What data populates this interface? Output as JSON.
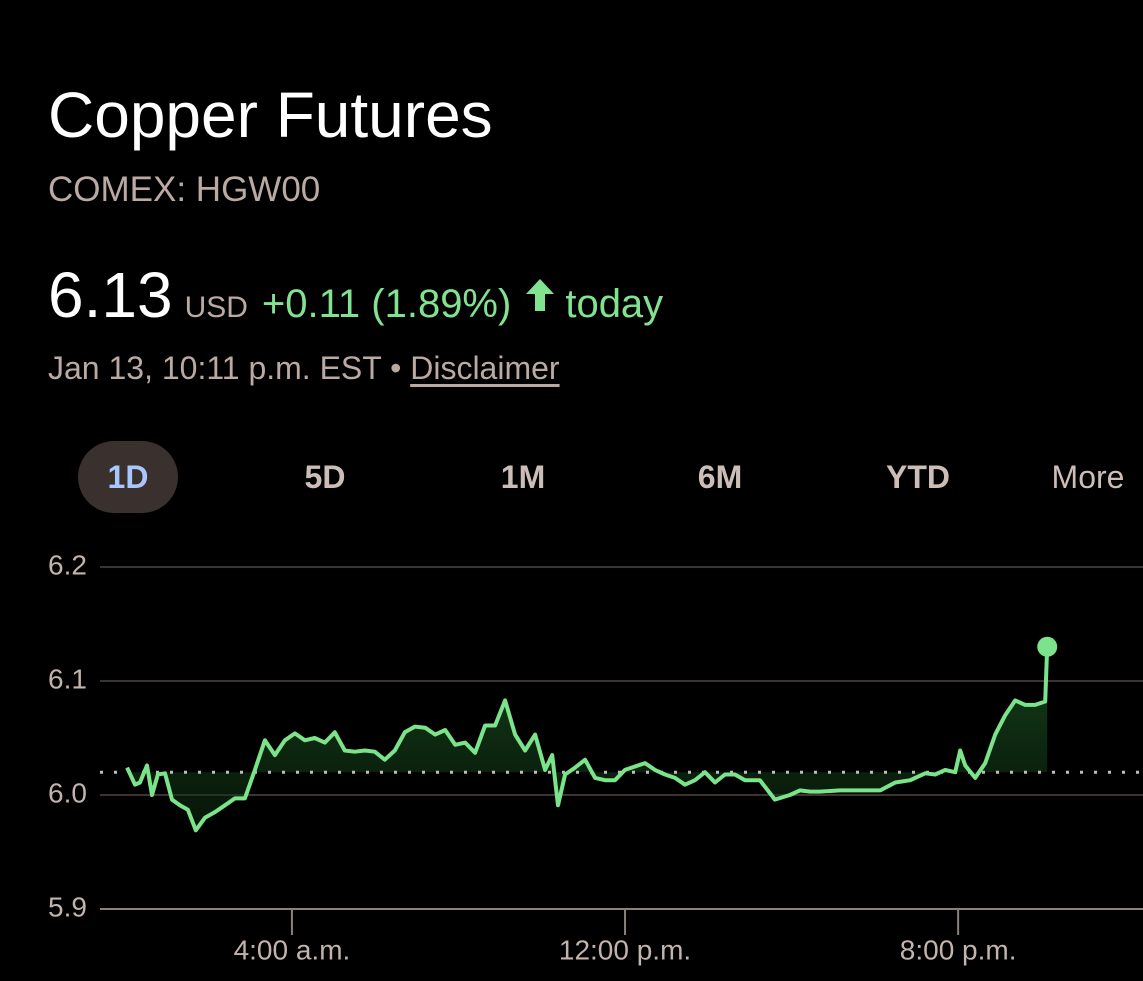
{
  "header": {
    "title": "Copper Futures",
    "subtitle": "COMEX: HGW00"
  },
  "quote": {
    "price": "6.13",
    "currency": "USD",
    "change": "+0.11 (1.89%)",
    "period": "today",
    "timestamp": "Jan 13, 10:11 p.m. EST",
    "separator": "•",
    "disclaimer": "Disclaimer"
  },
  "tabs": [
    "1D",
    "5D",
    "1M",
    "6M",
    "YTD",
    "More"
  ],
  "chart_data": {
    "type": "line",
    "color": "#7be389",
    "x": [
      0.04,
      0.23,
      0.35,
      0.52,
      0.64,
      0.78,
      0.95,
      1.12,
      1.31,
      1.5,
      1.69,
      1.91,
      2.15,
      2.39,
      2.63,
      2.87,
      3.11,
      3.35,
      3.59,
      3.83,
      4.07,
      4.31,
      4.55,
      4.79,
      5.03,
      5.27,
      5.51,
      5.75,
      5.99,
      6.23,
      6.47,
      6.71,
      6.95,
      7.2,
      7.44,
      7.68,
      7.92,
      8.16,
      8.4,
      8.64,
      8.88,
      9.12,
      9.36,
      9.6,
      9.84,
      10.08,
      10.25,
      10.39,
      10.56,
      10.8,
      11.04,
      11.28,
      11.52,
      11.76,
      12.0,
      12.24,
      12.48,
      12.72,
      12.96,
      13.2,
      13.44,
      13.68,
      13.92,
      14.16,
      14.4,
      14.64,
      14.88,
      15.24,
      15.6,
      15.96,
      16.2,
      16.44,
      16.68,
      17.17,
      17.65,
      18.13,
      18.49,
      18.85,
      19.21,
      19.45,
      19.69,
      19.93,
      20.05,
      20.17,
      20.41,
      20.65,
      20.89,
      21.13,
      21.37,
      21.61,
      21.85,
      22.09,
      22.14
    ],
    "values": [
      6.024,
      6.009,
      6.011,
      6.026,
      6.0,
      6.018,
      6.019,
      5.996,
      5.991,
      5.987,
      5.969,
      5.98,
      5.985,
      5.991,
      5.997,
      5.997,
      6.022,
      6.048,
      6.035,
      6.048,
      6.054,
      6.048,
      6.05,
      6.046,
      6.055,
      6.039,
      6.038,
      6.039,
      6.038,
      6.031,
      6.039,
      6.055,
      6.06,
      6.059,
      6.053,
      6.057,
      6.044,
      6.046,
      6.037,
      6.061,
      6.061,
      6.083,
      6.053,
      6.039,
      6.053,
      6.022,
      6.035,
      5.991,
      6.018,
      6.024,
      6.031,
      6.015,
      6.013,
      6.013,
      6.022,
      6.025,
      6.028,
      6.022,
      6.018,
      6.015,
      6.009,
      6.013,
      6.02,
      6.011,
      6.018,
      6.018,
      6.013,
      6.013,
      5.996,
      6.0,
      6.004,
      6.003,
      6.003,
      6.004,
      6.004,
      6.004,
      6.011,
      6.013,
      6.019,
      6.018,
      6.022,
      6.02,
      6.039,
      6.026,
      6.015,
      6.028,
      6.053,
      6.07,
      6.083,
      6.079,
      6.079,
      6.082,
      6.13
    ],
    "previous_close": 6.02,
    "xlim": [
      -0.61,
      24.44
    ],
    "xticks": [
      {
        "value": 4,
        "label": "4:00 a.m."
      },
      {
        "value": 12,
        "label": "12:00 p.m."
      },
      {
        "value": 20,
        "label": "8:00 p.m."
      }
    ],
    "ylim": [
      5.9,
      6.2
    ],
    "yticks": [
      5.9,
      {
        "value": 6,
        "label": "6.0"
      },
      6.1,
      6.2
    ],
    "grid": true
  }
}
